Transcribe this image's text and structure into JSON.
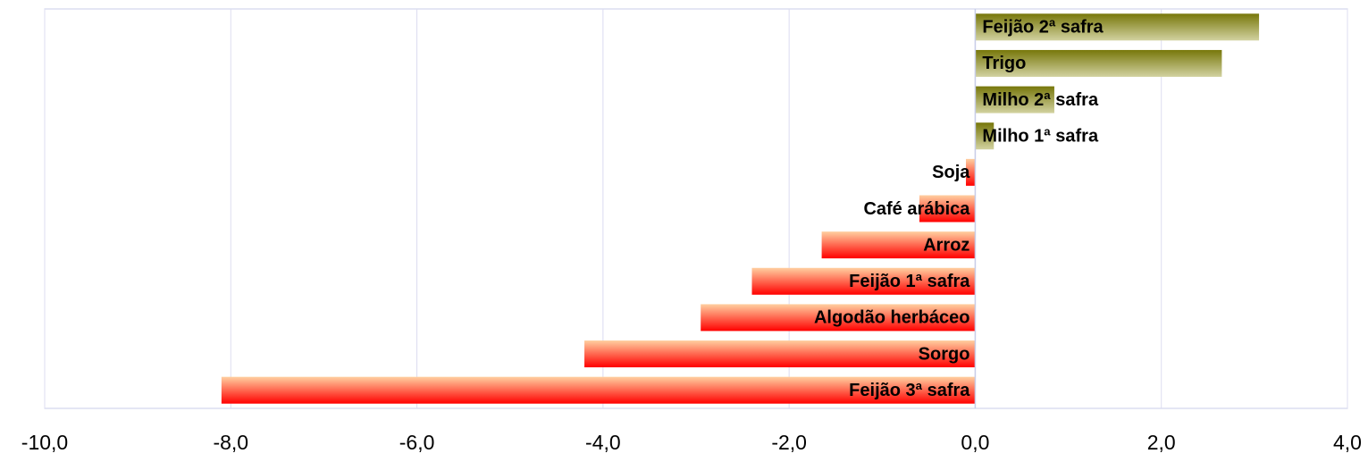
{
  "chart_data": {
    "type": "barh",
    "categories": [
      "Feijão 2ª safra",
      "Trigo",
      "Milho 2ª safra",
      "Milho 1ª safra",
      "Soja",
      "Café arábica",
      "Arroz",
      "Feijão 1ª safra",
      "Algodão herbáceo",
      "Sorgo",
      "Feijão 3ª safra"
    ],
    "values": [
      3.05,
      2.65,
      0.85,
      0.2,
      -0.1,
      -0.6,
      -1.65,
      -2.4,
      -2.95,
      -4.2,
      -8.1
    ],
    "positive_color": [
      "#77770a",
      "#d2d2a0"
    ],
    "negative_color": [
      "#ffcfa0",
      "#ff0000"
    ],
    "xlim": [
      -10,
      4
    ],
    "xticks": [
      {
        "value": -10,
        "label": "-10,0"
      },
      {
        "value": -8,
        "label": "-8,0"
      },
      {
        "value": -6,
        "label": "-6,0"
      },
      {
        "value": -4,
        "label": "-4,0"
      },
      {
        "value": -2,
        "label": "-2,0"
      },
      {
        "value": 0,
        "label": "0,0"
      },
      {
        "value": 2,
        "label": "2,0"
      },
      {
        "value": 4,
        "label": "4,0"
      }
    ],
    "grid": true
  }
}
